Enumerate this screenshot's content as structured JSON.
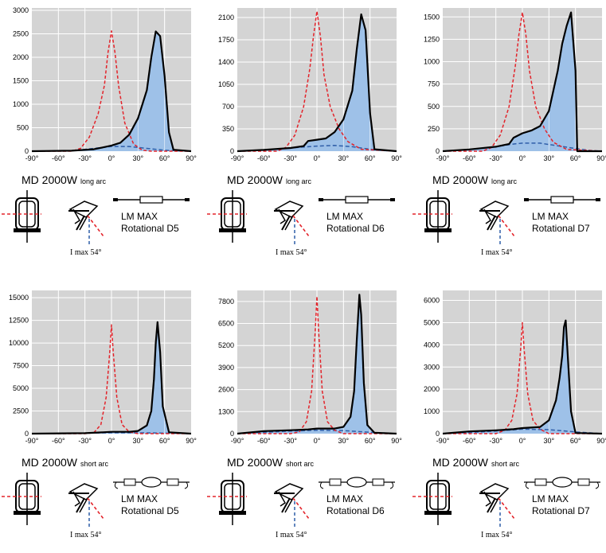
{
  "colors": {
    "plot_bg": "#d4d4d4",
    "grid": "#ffffff",
    "fill": "#9ec1e8",
    "black_curve": "#000000",
    "red_dash": "#e3232a",
    "blue_dash": "#2f5ea8"
  },
  "chart_data": [
    {
      "type": "line",
      "model": "MD 2000W",
      "arc": "long arc",
      "lm": "LM MAX",
      "rot": "Rotational D5",
      "imax": "I max 54°",
      "xlabels": [
        "-90°",
        "-60°",
        "-30°",
        "0°",
        "30°",
        "60°",
        "90°"
      ],
      "xlim": [
        -90,
        90
      ],
      "ylim": [
        0,
        3050
      ],
      "yticks": [
        0,
        500,
        1000,
        1500,
        2000,
        2500,
        3000
      ],
      "series": [
        {
          "style": "solid",
          "x": [
            -90,
            -45,
            -20,
            -10,
            0,
            10,
            20,
            30,
            40,
            45,
            50,
            55,
            60,
            65,
            70,
            90
          ],
          "y": [
            0,
            10,
            40,
            80,
            120,
            180,
            350,
            700,
            1300,
            2000,
            2550,
            2450,
            1600,
            400,
            30,
            0
          ]
        },
        {
          "style": "red",
          "x": [
            -90,
            -45,
            -35,
            -25,
            -15,
            -8,
            -4,
            0,
            4,
            8,
            15,
            25,
            35,
            45,
            90
          ],
          "y": [
            0,
            0,
            60,
            300,
            800,
            1400,
            2100,
            2560,
            2100,
            1400,
            600,
            150,
            20,
            0,
            0
          ]
        },
        {
          "style": "blue",
          "x": [
            -90,
            -45,
            -20,
            0,
            20,
            40,
            60,
            75,
            90
          ],
          "y": [
            0,
            10,
            60,
            100,
            100,
            60,
            20,
            5,
            0
          ]
        }
      ]
    },
    {
      "type": "line",
      "model": "MD 2000W",
      "arc": "long arc",
      "lm": "LM MAX",
      "rot": "Rotational D6",
      "imax": "I max 54°",
      "xlabels": [
        "-90°",
        "-60°",
        "-30°",
        "0°",
        "30°",
        "60°",
        "90°"
      ],
      "xlim": [
        -90,
        90
      ],
      "ylim": [
        0,
        2250
      ],
      "yticks": [
        0,
        350,
        700,
        1050,
        1400,
        1750,
        2100
      ],
      "series": [
        {
          "style": "solid",
          "x": [
            -90,
            -60,
            -30,
            -15,
            -10,
            0,
            10,
            20,
            30,
            40,
            45,
            50,
            55,
            60,
            65,
            90
          ],
          "y": [
            0,
            20,
            50,
            80,
            160,
            180,
            200,
            300,
            500,
            950,
            1600,
            2150,
            1900,
            600,
            30,
            0
          ]
        },
        {
          "style": "red",
          "x": [
            -90,
            -45,
            -35,
            -25,
            -15,
            -8,
            -4,
            0,
            4,
            8,
            15,
            25,
            35,
            50,
            90
          ],
          "y": [
            0,
            0,
            60,
            250,
            700,
            1300,
            1800,
            2200,
            1800,
            1200,
            700,
            350,
            150,
            30,
            0
          ]
        },
        {
          "style": "blue",
          "x": [
            -90,
            -60,
            -30,
            -10,
            0,
            20,
            40,
            60,
            75,
            90
          ],
          "y": [
            0,
            20,
            50,
            70,
            80,
            90,
            70,
            30,
            10,
            0
          ]
        }
      ]
    },
    {
      "type": "line",
      "model": "MD 2000W",
      "arc": "long arc",
      "lm": "LM MAX",
      "rot": "Rotational D7",
      "imax": "I max 54°",
      "xlabels": [
        "-90°",
        "-60°",
        "-30°",
        "0°",
        "30°",
        "60°",
        "90°"
      ],
      "xlim": [
        -90,
        90
      ],
      "ylim": [
        0,
        1600
      ],
      "yticks": [
        0,
        250,
        500,
        750,
        1000,
        1250,
        1500
      ],
      "series": [
        {
          "style": "solid",
          "x": [
            -90,
            -60,
            -30,
            -15,
            -10,
            0,
            10,
            20,
            30,
            40,
            45,
            50,
            55,
            60,
            62,
            90
          ],
          "y": [
            0,
            20,
            50,
            80,
            150,
            200,
            230,
            280,
            450,
            900,
            1200,
            1400,
            1550,
            900,
            0,
            0
          ]
        },
        {
          "style": "red",
          "x": [
            -90,
            -45,
            -35,
            -25,
            -15,
            -8,
            -4,
            0,
            4,
            8,
            15,
            25,
            35,
            50,
            90
          ],
          "y": [
            0,
            0,
            40,
            180,
            500,
            950,
            1300,
            1550,
            1300,
            900,
            500,
            250,
            100,
            20,
            0
          ]
        },
        {
          "style": "blue",
          "x": [
            -90,
            -60,
            -30,
            -10,
            0,
            20,
            40,
            60,
            75,
            90
          ],
          "y": [
            0,
            20,
            50,
            80,
            90,
            90,
            60,
            30,
            10,
            0
          ]
        }
      ]
    },
    {
      "type": "line",
      "model": "MD 2000W",
      "arc": "short arc",
      "lm": "LM MAX",
      "rot": "Rotational D5",
      "imax": "I max 54°",
      "xlabels": [
        "-90°",
        "-60°",
        "-30°",
        "0°",
        "30°",
        "60°",
        "90°"
      ],
      "xlim": [
        -90,
        90
      ],
      "ylim": [
        0,
        15800
      ],
      "yticks": [
        0,
        2500,
        5000,
        7500,
        10000,
        12500,
        15000
      ],
      "series": [
        {
          "style": "solid",
          "x": [
            -90,
            -30,
            -10,
            0,
            20,
            30,
            40,
            45,
            48,
            50,
            52,
            55,
            58,
            65,
            90
          ],
          "y": [
            0,
            50,
            150,
            200,
            200,
            300,
            900,
            2500,
            6000,
            10000,
            12300,
            9000,
            3000,
            150,
            0
          ]
        },
        {
          "style": "red",
          "x": [
            -90,
            -30,
            -20,
            -12,
            -6,
            -2,
            0,
            2,
            6,
            12,
            20,
            30,
            90
          ],
          "y": [
            0,
            0,
            100,
            1000,
            4000,
            9000,
            12000,
            9000,
            4000,
            1000,
            200,
            0,
            0
          ]
        },
        {
          "style": "blue",
          "x": [
            -90,
            -60,
            -30,
            0,
            30,
            60,
            90
          ],
          "y": [
            0,
            20,
            60,
            100,
            100,
            50,
            0
          ]
        }
      ]
    },
    {
      "type": "line",
      "model": "MD 2000W",
      "arc": "short arc",
      "lm": "LM MAX",
      "rot": "Rotational D6",
      "imax": "I max 54°",
      "xlabels": [
        "-90°",
        "-60°",
        "-30°",
        "0°",
        "30°",
        "60°",
        "90°"
      ],
      "xlim": [
        -90,
        90
      ],
      "ylim": [
        0,
        8450
      ],
      "yticks": [
        0,
        1300,
        2600,
        3900,
        5200,
        6500,
        7800
      ],
      "series": [
        {
          "style": "solid",
          "x": [
            -90,
            -60,
            -30,
            -10,
            0,
            20,
            30,
            38,
            42,
            45,
            48,
            50,
            53,
            57,
            65,
            90
          ],
          "y": [
            0,
            150,
            200,
            250,
            300,
            300,
            400,
            1000,
            2500,
            5500,
            8200,
            7000,
            3000,
            500,
            50,
            0
          ]
        },
        {
          "style": "red",
          "x": [
            -90,
            -30,
            -20,
            -12,
            -6,
            -2,
            0,
            2,
            6,
            12,
            20,
            30,
            90
          ],
          "y": [
            0,
            0,
            100,
            700,
            2500,
            6000,
            8100,
            6000,
            2500,
            700,
            200,
            0,
            0
          ]
        },
        {
          "style": "blue",
          "x": [
            -90,
            -60,
            -30,
            0,
            30,
            60,
            90
          ],
          "y": [
            0,
            80,
            150,
            200,
            180,
            80,
            0
          ]
        }
      ]
    },
    {
      "type": "line",
      "model": "MD 2000W",
      "arc": "short arc",
      "lm": "LM MAX",
      "rot": "Rotational D7",
      "imax": "I max 54°",
      "xlabels": [
        "-90°",
        "-60°",
        "-30°",
        "0°",
        "30°",
        "60°",
        "90°"
      ],
      "xlim": [
        -90,
        90
      ],
      "ylim": [
        0,
        6450
      ],
      "yticks": [
        0,
        1000,
        2000,
        3000,
        4000,
        5000,
        6000
      ],
      "series": [
        {
          "style": "solid",
          "x": [
            -90,
            -60,
            -30,
            -10,
            0,
            20,
            30,
            38,
            42,
            45,
            47,
            49,
            52,
            55,
            60,
            90
          ],
          "y": [
            0,
            100,
            150,
            200,
            250,
            300,
            600,
            1500,
            2500,
            3500,
            4800,
            5100,
            3000,
            1000,
            30,
            0
          ]
        },
        {
          "style": "red",
          "x": [
            -90,
            -30,
            -20,
            -12,
            -6,
            -2,
            0,
            2,
            6,
            12,
            20,
            30,
            90
          ],
          "y": [
            0,
            0,
            150,
            600,
            1800,
            3800,
            5000,
            3800,
            1800,
            600,
            200,
            0,
            0
          ]
        },
        {
          "style": "blue",
          "x": [
            -90,
            -60,
            -30,
            0,
            30,
            60,
            90
          ],
          "y": [
            0,
            50,
            120,
            200,
            180,
            80,
            0
          ]
        }
      ]
    }
  ]
}
